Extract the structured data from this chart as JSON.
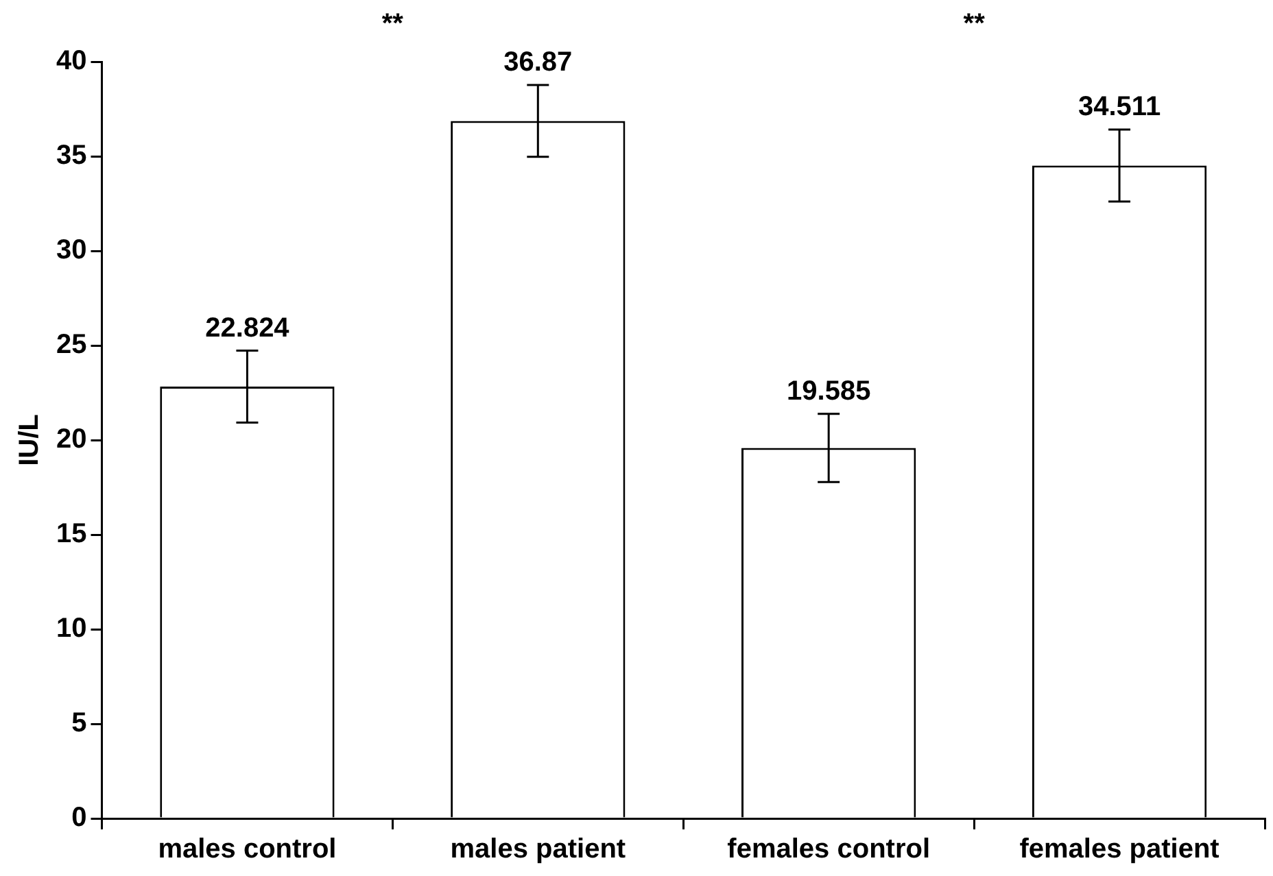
{
  "chart_data": {
    "type": "bar",
    "ylabel": "IU/L",
    "categories": [
      "males control",
      "males patient",
      "females control",
      "females patient"
    ],
    "values": [
      22.824,
      36.87,
      19.585,
      34.511
    ],
    "errors": [
      1.9,
      1.9,
      1.8,
      1.9
    ],
    "colors": [
      "#ffffff",
      "#ffffff",
      "#ffffff",
      "#ffffff"
    ],
    "data_labels": true,
    "annotations": [
      "**",
      "**"
    ],
    "ylim": [
      0,
      40
    ],
    "yticks": [
      0,
      5,
      10,
      15,
      20,
      25,
      30,
      35,
      40
    ],
    "grid": false,
    "legend": false
  }
}
